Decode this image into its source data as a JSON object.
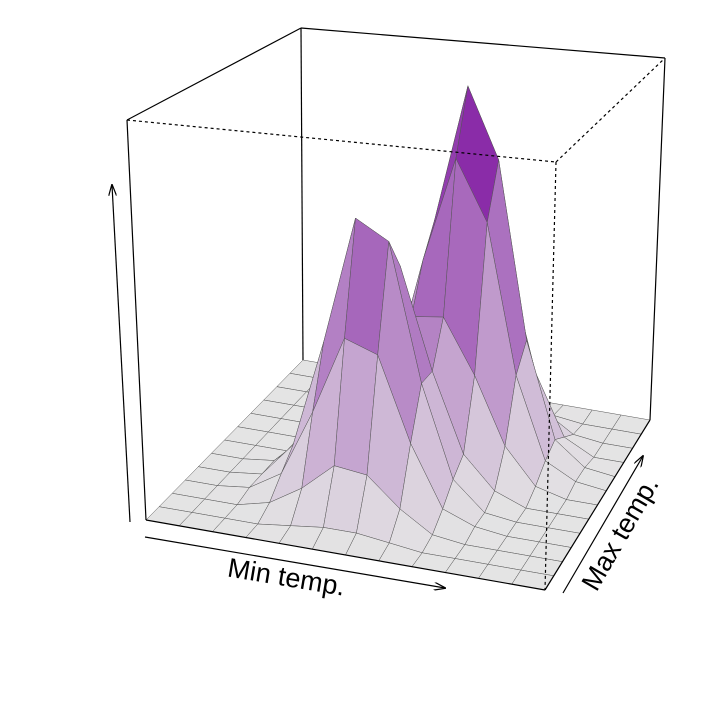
{
  "chart_data": {
    "type": "surface3d",
    "xlabel": "Min temp.",
    "ylabel": "Max temp.",
    "zlim": [
      0,
      1
    ],
    "colors": [
      "#e4e4e4",
      "#74009a"
    ],
    "z": [
      [
        0,
        0,
        0,
        0,
        0,
        0,
        0,
        0,
        0,
        0,
        0,
        0,
        0
      ],
      [
        0,
        0,
        0,
        0,
        0.01,
        0.02,
        0.02,
        0.01,
        0,
        0,
        0,
        0,
        0
      ],
      [
        0,
        0,
        0,
        0.02,
        0.07,
        0.14,
        0.13,
        0.06,
        0.01,
        0,
        0,
        0,
        0
      ],
      [
        0,
        0,
        0.01,
        0.06,
        0.23,
        0.43,
        0.4,
        0.19,
        0.04,
        0.01,
        0,
        0,
        0
      ],
      [
        0,
        0,
        0.01,
        0.1,
        0.38,
        0.71,
        0.66,
        0.31,
        0.08,
        0.01,
        0,
        0,
        0
      ],
      [
        0,
        0,
        0.01,
        0.08,
        0.31,
        0.58,
        0.57,
        0.31,
        0.11,
        0.03,
        0,
        0,
        0
      ],
      [
        0,
        0,
        0,
        0.03,
        0.13,
        0.29,
        0.41,
        0.42,
        0.28,
        0.11,
        0.02,
        0,
        0
      ],
      [
        0,
        0,
        0,
        0.01,
        0.05,
        0.2,
        0.53,
        0.81,
        0.65,
        0.26,
        0.05,
        0.01,
        0
      ],
      [
        0,
        0,
        0,
        0,
        0.03,
        0.19,
        0.61,
        0.98,
        0.79,
        0.32,
        0.07,
        0.01,
        0
      ],
      [
        0,
        0,
        0,
        0,
        0.02,
        0.12,
        0.37,
        0.6,
        0.49,
        0.2,
        0.04,
        0,
        0
      ],
      [
        0,
        0,
        0,
        0,
        0.01,
        0.04,
        0.12,
        0.19,
        0.15,
        0.06,
        0.01,
        0,
        0
      ],
      [
        0,
        0,
        0,
        0,
        0,
        0.01,
        0.02,
        0.03,
        0.02,
        0.01,
        0,
        0,
        0
      ],
      [
        0,
        0,
        0,
        0,
        0,
        0,
        0,
        0,
        0,
        0,
        0,
        0,
        0
      ]
    ]
  }
}
